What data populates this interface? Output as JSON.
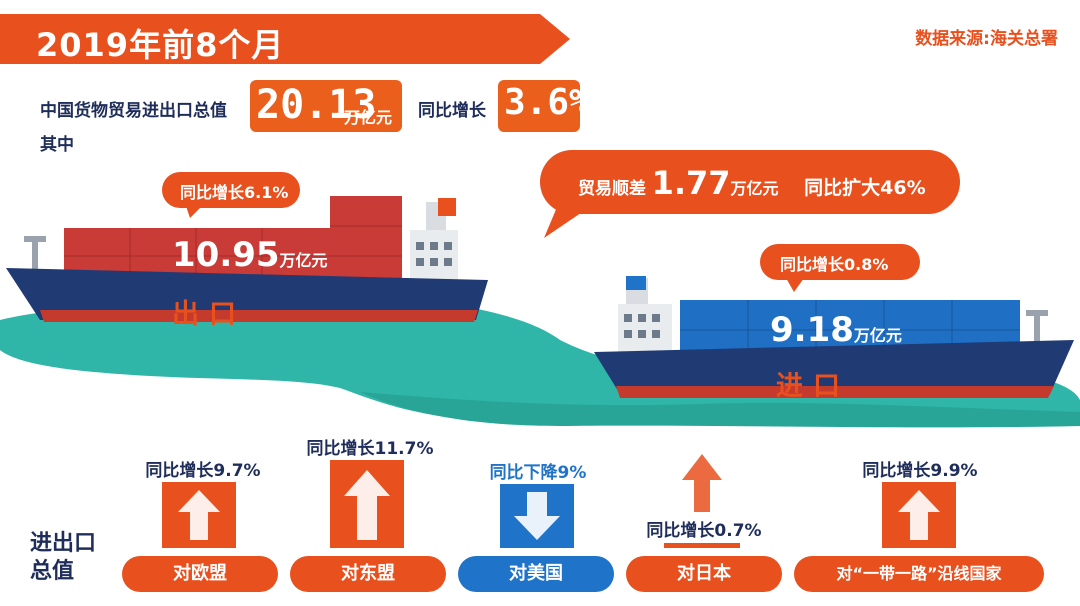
{
  "header": {
    "title": "2019年前8个月",
    "source": "数据来源:海关总署"
  },
  "summary": {
    "total_label": "中国货物贸易进出口总值",
    "total_value": "20.13",
    "total_unit": "万亿元",
    "growth_label": "同比增长",
    "growth_value": "3.6%",
    "sub_label": "其中"
  },
  "export": {
    "growth": "同比增长6.1%",
    "value": "10.95",
    "unit": "万亿元",
    "label": "出口"
  },
  "surplus": {
    "label": "贸易顺差",
    "value": "1.77",
    "unit": "万亿元",
    "change": "同比扩大46%"
  },
  "import": {
    "growth": "同比增长0.8%",
    "value": "9.18",
    "unit": "万亿元",
    "label": "进口"
  },
  "partners": {
    "row_label_1": "进出口",
    "row_label_2": "总值",
    "items": [
      {
        "name": "对欧盟",
        "stat": "同比增长9.7%"
      },
      {
        "name": "对东盟",
        "stat": "同比增长11.7%"
      },
      {
        "name": "对美国",
        "stat": "同比下降9%"
      },
      {
        "name": "对日本",
        "stat": "同比增长0.7%"
      },
      {
        "name": "对“一带一路”沿线国家",
        "stat": "同比增长9.9%"
      }
    ]
  },
  "colors": {
    "orange": "#e8501e",
    "blue": "#1f74c9",
    "navy": "#1f2d5a"
  }
}
